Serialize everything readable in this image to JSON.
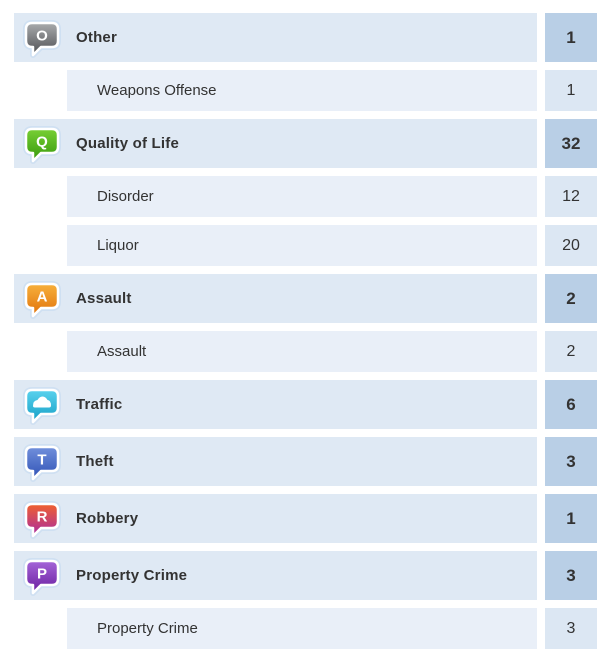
{
  "table": {
    "name": "crime-category-counts",
    "colors": {
      "category_row_bg": "#dfe9f4",
      "subcategory_row_bg": "#e9eff8",
      "category_count_bg": "#b9cfe6",
      "subcategory_count_bg": "#dce7f3",
      "text": "#333333",
      "icon_glow": "#cfe0f2"
    }
  },
  "rows": [
    {
      "type": "category",
      "label": "Other",
      "count": "1",
      "icon": {
        "name": "other-bubble-icon",
        "glyph": "O",
        "top": "#a9abad",
        "bottom": "#4e4f52"
      }
    },
    {
      "type": "subcategory",
      "label": "Weapons Offense",
      "count": "1"
    },
    {
      "type": "category",
      "label": "Quality of Life",
      "count": "32",
      "icon": {
        "name": "quality-of-life-bubble-icon",
        "glyph": "Q",
        "top": "#78cf35",
        "bottom": "#36990b"
      }
    },
    {
      "type": "subcategory",
      "label": "Disorder",
      "count": "12"
    },
    {
      "type": "subcategory",
      "label": "Liquor",
      "count": "20"
    },
    {
      "type": "category",
      "label": "Assault",
      "count": "2",
      "icon": {
        "name": "assault-bubble-icon",
        "glyph": "A",
        "top": "#f7b03c",
        "bottom": "#e0720b"
      }
    },
    {
      "type": "subcategory",
      "label": "Assault",
      "count": "2"
    },
    {
      "type": "category",
      "label": "Traffic",
      "count": "6",
      "icon": {
        "name": "traffic-car-icon",
        "glyph": "car",
        "top": "#59d2ee",
        "bottom": "#17a0c6"
      }
    },
    {
      "type": "category",
      "label": "Theft",
      "count": "3",
      "icon": {
        "name": "theft-bubble-icon",
        "glyph": "T",
        "top": "#7190dc",
        "bottom": "#2f51b5"
      }
    },
    {
      "type": "category",
      "label": "Robbery",
      "count": "1",
      "icon": {
        "name": "robbery-bubble-icon",
        "glyph": "R",
        "top": "#f0612e",
        "bottom": "#a82aa4"
      }
    },
    {
      "type": "category",
      "label": "Property Crime",
      "count": "3",
      "icon": {
        "name": "property-crime-bubble-icon",
        "glyph": "P",
        "top": "#a565d8",
        "bottom": "#691d9e"
      }
    },
    {
      "type": "subcategory",
      "label": "Property Crime",
      "count": "3"
    }
  ]
}
